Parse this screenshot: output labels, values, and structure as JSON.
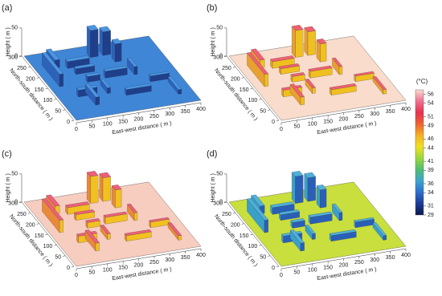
{
  "chart_data": [
    {
      "type": "surface3d",
      "label": "(a)",
      "xlabel": "East-west distance ( m )",
      "ylabel": "North-south distance ( m )",
      "zlabel": "Height ( m )",
      "xlim": [
        0,
        400
      ],
      "ylim": [
        0,
        300
      ],
      "zlim": [
        0,
        50
      ],
      "xticks": [
        0,
        50,
        100,
        150,
        200,
        250,
        300,
        350,
        400
      ],
      "yticks": [
        0,
        50,
        100,
        150,
        200,
        250,
        300
      ],
      "zticks": [
        0,
        50
      ],
      "ground_color": "#3f86d6",
      "wall_color": "#1f3f8a",
      "side_color": "#2d62b8",
      "roof_color": "#4a95e0"
    },
    {
      "type": "surface3d",
      "label": "(b)",
      "xlabel": "East-west distance ( m )",
      "ylabel": "North-south distance ( m )",
      "zlabel": "Height ( m )",
      "xlim": [
        0,
        400
      ],
      "ylim": [
        0,
        300
      ],
      "zlim": [
        0,
        50
      ],
      "xticks": [
        0,
        50,
        100,
        150,
        200,
        250,
        300,
        350,
        400
      ],
      "yticks": [
        0,
        50,
        100,
        150,
        200,
        250,
        300
      ],
      "zticks": [
        0,
        50
      ],
      "ground_color": "#f9dccb",
      "wall_color": "#f0c020",
      "side_color": "#e8a030",
      "roof_color": "#f06070"
    },
    {
      "type": "surface3d",
      "label": "(c)",
      "xlabel": "East-west distance ( m )",
      "ylabel": "North-south distance ( m )",
      "zlabel": "Height ( m )",
      "xlim": [
        0,
        400
      ],
      "ylim": [
        0,
        300
      ],
      "zlim": [
        0,
        50
      ],
      "xticks": [
        0,
        50,
        100,
        150,
        200,
        250,
        300,
        350,
        400
      ],
      "yticks": [
        0,
        50,
        100,
        150,
        200,
        250,
        300
      ],
      "zticks": [
        0,
        50
      ],
      "ground_color": "#f7cdbf",
      "wall_color": "#f2c020",
      "side_color": "#e88a3a",
      "roof_color": "#ee5f7a"
    },
    {
      "type": "surface3d",
      "label": "(d)",
      "xlabel": "East-west distance ( m )",
      "ylabel": "North-south distance ( m )",
      "zlabel": "Height ( m )",
      "xlim": [
        0,
        400
      ],
      "ylim": [
        0,
        300
      ],
      "zlim": [
        0,
        50
      ],
      "xticks": [
        0,
        50,
        100,
        150,
        200,
        250,
        300,
        350,
        400
      ],
      "yticks": [
        0,
        50,
        100,
        150,
        200,
        250,
        300
      ],
      "zticks": [
        0,
        50
      ],
      "ground_color": "#c9df3e",
      "wall_color": "#2a5fb8",
      "side_color": "#3aa0c8",
      "roof_color": "#50b0d8"
    }
  ],
  "colorbar": {
    "label": "(°C)",
    "lim": [
      29,
      57
    ],
    "ticks": [
      29,
      31,
      34,
      36,
      39,
      41,
      44,
      46,
      49,
      51,
      54,
      56
    ],
    "colors": [
      "#0b1650",
      "#1b3a9a",
      "#2c6fd0",
      "#3aa6d0",
      "#4cc070",
      "#9ad83a",
      "#f0e020",
      "#f6b020",
      "#f06030",
      "#e83050",
      "#f07090",
      "#fadcd0"
    ]
  }
}
